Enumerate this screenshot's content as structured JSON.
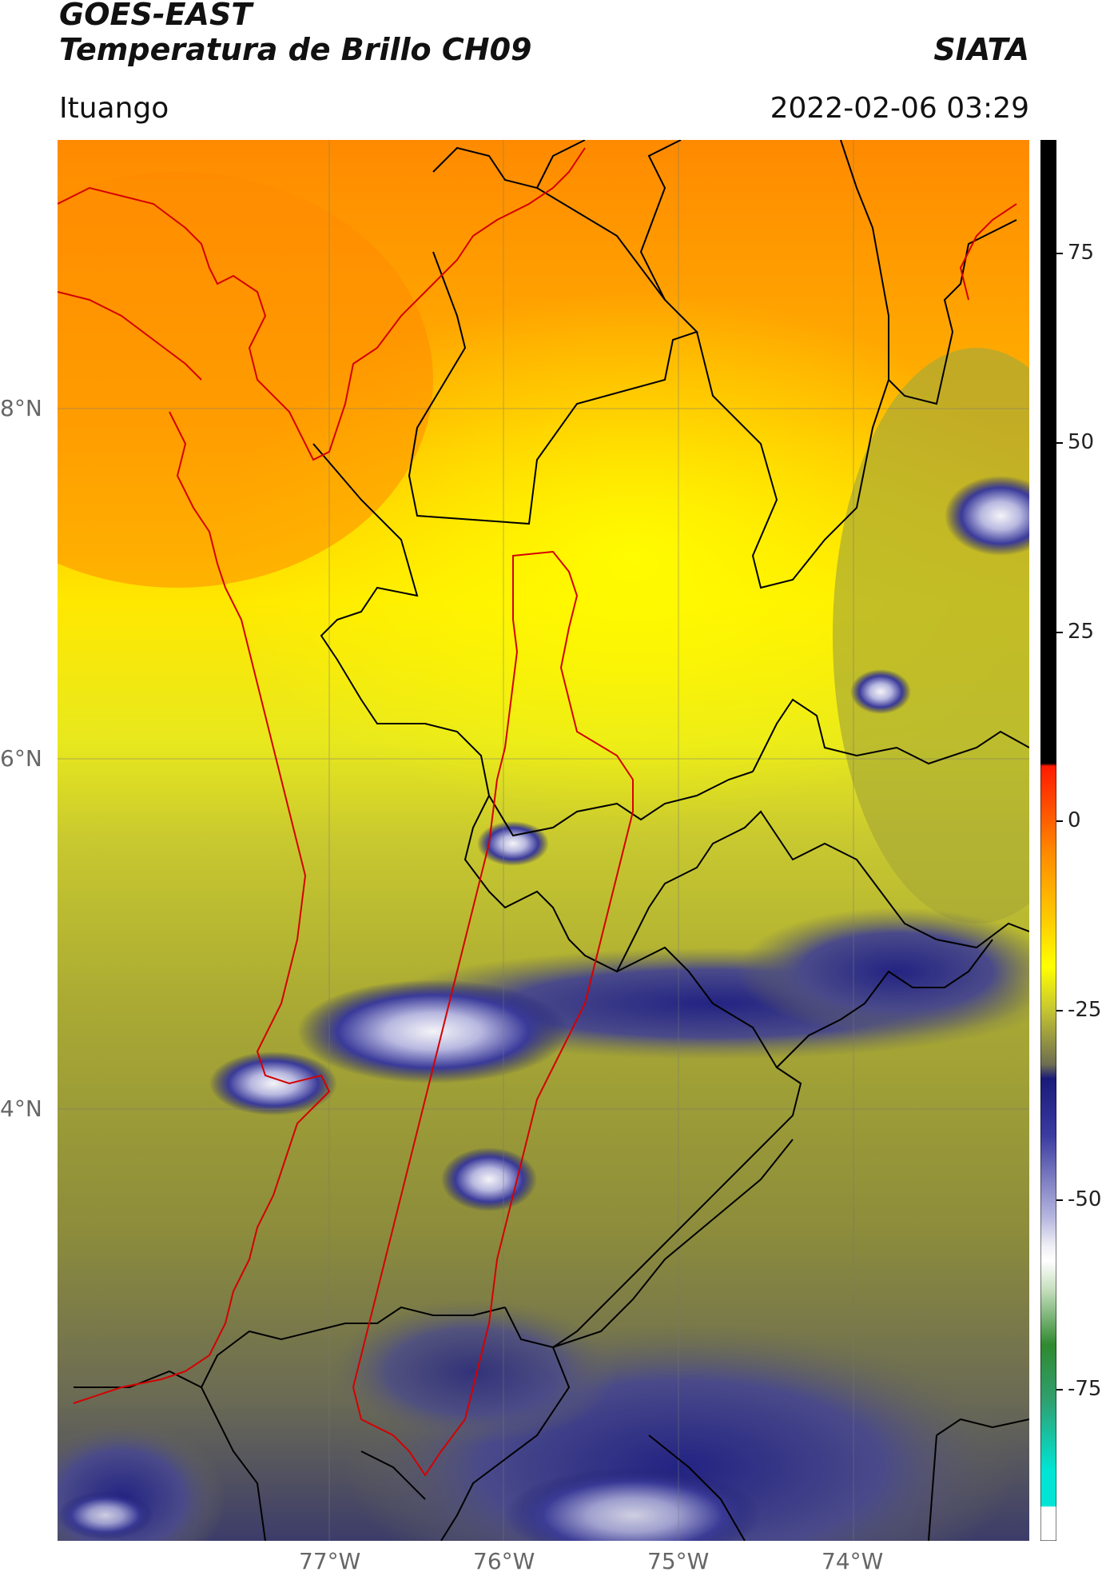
{
  "header": {
    "satellite": "GOES-EAST",
    "product": "Temperatura de Brillo CH09",
    "org": "SIATA",
    "region": "Ituango",
    "datetime": "2022-02-06 03:29"
  },
  "axes": {
    "lat_labels": [
      "8°N",
      "6°N",
      "4°N"
    ],
    "lon_labels": [
      "77°W",
      "76°W",
      "75°W",
      "74°W"
    ]
  },
  "colorbar": {
    "min": -95,
    "max": 90,
    "tick_labels": [
      "75",
      "50",
      "25",
      "0",
      "-25",
      "-50",
      "-75"
    ],
    "tick_values": [
      75,
      50,
      25,
      0,
      -25,
      -50,
      -75
    ],
    "colors": {
      "hot": "#000000",
      "red": "#ff1a00",
      "orange": "#ff8c00",
      "yellow": "#ffff00",
      "olive": "#8f8f2a",
      "navy": "#1a1a7a",
      "white": "#f0f0f5",
      "green": "#2f8a2f",
      "cyan": "#00e5d5"
    }
  },
  "map": {
    "border_color": "#d40000",
    "admin_color": "#000000"
  }
}
